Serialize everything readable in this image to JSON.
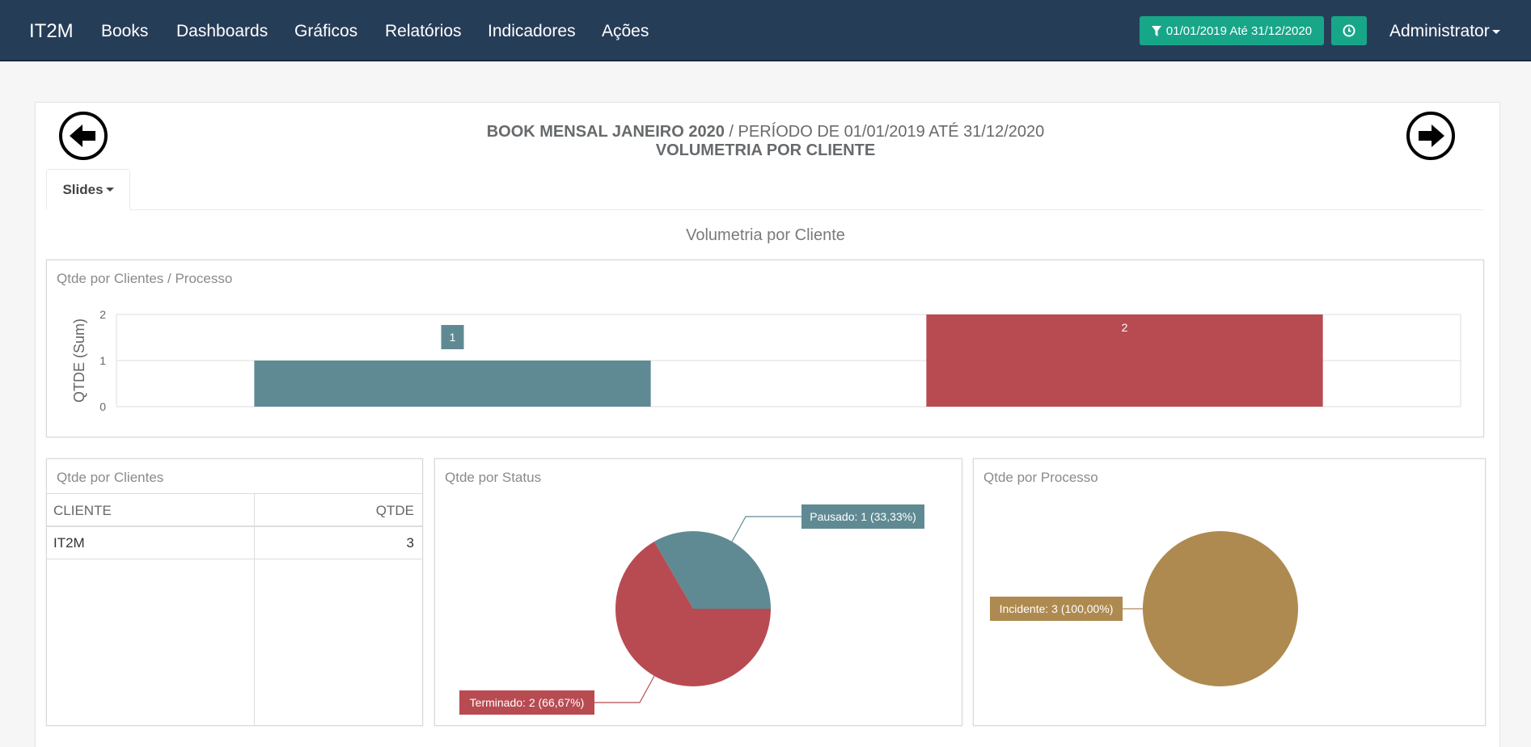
{
  "navbar": {
    "brand": "IT2M",
    "items": [
      "Books",
      "Dashboards",
      "Gráficos",
      "Relatórios",
      "Indicadores",
      "Ações"
    ],
    "date_filter": "01/01/2019 Até 31/12/2020",
    "user": "Administrator"
  },
  "header": {
    "book": "BOOK MENSAL JANEIRO 2020",
    "period": " / PERÍODO DE 01/01/2019 ATÉ 31/12/2020",
    "subtitle": "VOLUMETRIA POR CLIENTE"
  },
  "tabs": {
    "slides": "Slides"
  },
  "section_title": "Volumetria por Cliente",
  "colors": {
    "navbar": "#263d58",
    "accent": "#18a689",
    "teal": "#5f8a93",
    "red": "#b84b52",
    "gold": "#ae8a50"
  },
  "bar_panel": {
    "title": "Qtde por Clientes / Processo"
  },
  "table_panel": {
    "title": "Qtde por Clientes",
    "columns": [
      "CLIENTE",
      "QTDE"
    ],
    "rows": [
      {
        "cliente": "IT2M",
        "qtde": "3"
      }
    ]
  },
  "status_panel": {
    "title": "Qtde por Status"
  },
  "process_panel": {
    "title": "Qtde por Processo"
  },
  "chart_data": [
    {
      "type": "bar",
      "ylabel": "QTDE (Sum)",
      "ylim": [
        0,
        2
      ],
      "yticks": [
        "0",
        "1",
        "2"
      ],
      "series": [
        {
          "values": [
            1
          ],
          "color": "#5f8a93",
          "label": "1"
        },
        {
          "values": [
            2
          ],
          "color": "#b84b52",
          "label": "2"
        }
      ]
    },
    {
      "type": "pie",
      "slices": [
        {
          "name": "Pausado",
          "value": 1,
          "label": "Pausado: 1 (33,33%)",
          "color": "#5f8a93"
        },
        {
          "name": "Terminado",
          "value": 2,
          "label": "Terminado: 2 (66,67%)",
          "color": "#b84b52"
        }
      ]
    },
    {
      "type": "pie",
      "slices": [
        {
          "name": "Incidente",
          "value": 3,
          "label": "Incidente: 3 (100,00%)",
          "color": "#ae8a50"
        }
      ]
    }
  ]
}
